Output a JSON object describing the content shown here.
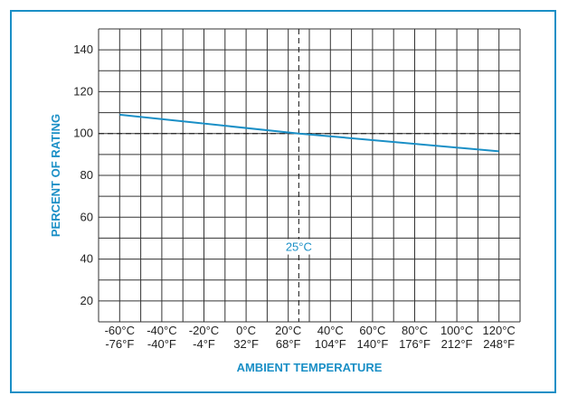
{
  "chart_data": {
    "type": "line",
    "xlabel": "AMBIENT TEMPERATURE",
    "ylabel": "PERCENT OF RATING",
    "x_ticks_c": [
      "-60°C",
      "-40°C",
      "-20°C",
      "0°C",
      "20°C",
      "40°C",
      "60°C",
      "80°C",
      "100°C",
      "120°C"
    ],
    "x_ticks_f": [
      "-76°F",
      "-40°F",
      "-4°F",
      "32°F",
      "68°F",
      "104°F",
      "140°F",
      "176°F",
      "212°F",
      "248°F"
    ],
    "x_tick_values": [
      -60,
      -40,
      -20,
      0,
      20,
      40,
      60,
      80,
      100,
      120
    ],
    "y_ticks": [
      "20",
      "40",
      "60",
      "80",
      "100",
      "120",
      "140"
    ],
    "y_tick_values": [
      20,
      40,
      60,
      80,
      100,
      120,
      140
    ],
    "xlim": [
      -70,
      130
    ],
    "ylim": [
      10,
      150
    ],
    "grid": true,
    "series": [
      {
        "x": [
          -60,
          25,
          120
        ],
        "values": [
          109,
          100,
          91.5
        ]
      }
    ],
    "reference_lines": {
      "x": 25,
      "y": 100
    },
    "annotation": "25°C",
    "colors": {
      "line": "#1a8fc6",
      "grid": "#333333",
      "accent": "#1a8fc6"
    }
  }
}
